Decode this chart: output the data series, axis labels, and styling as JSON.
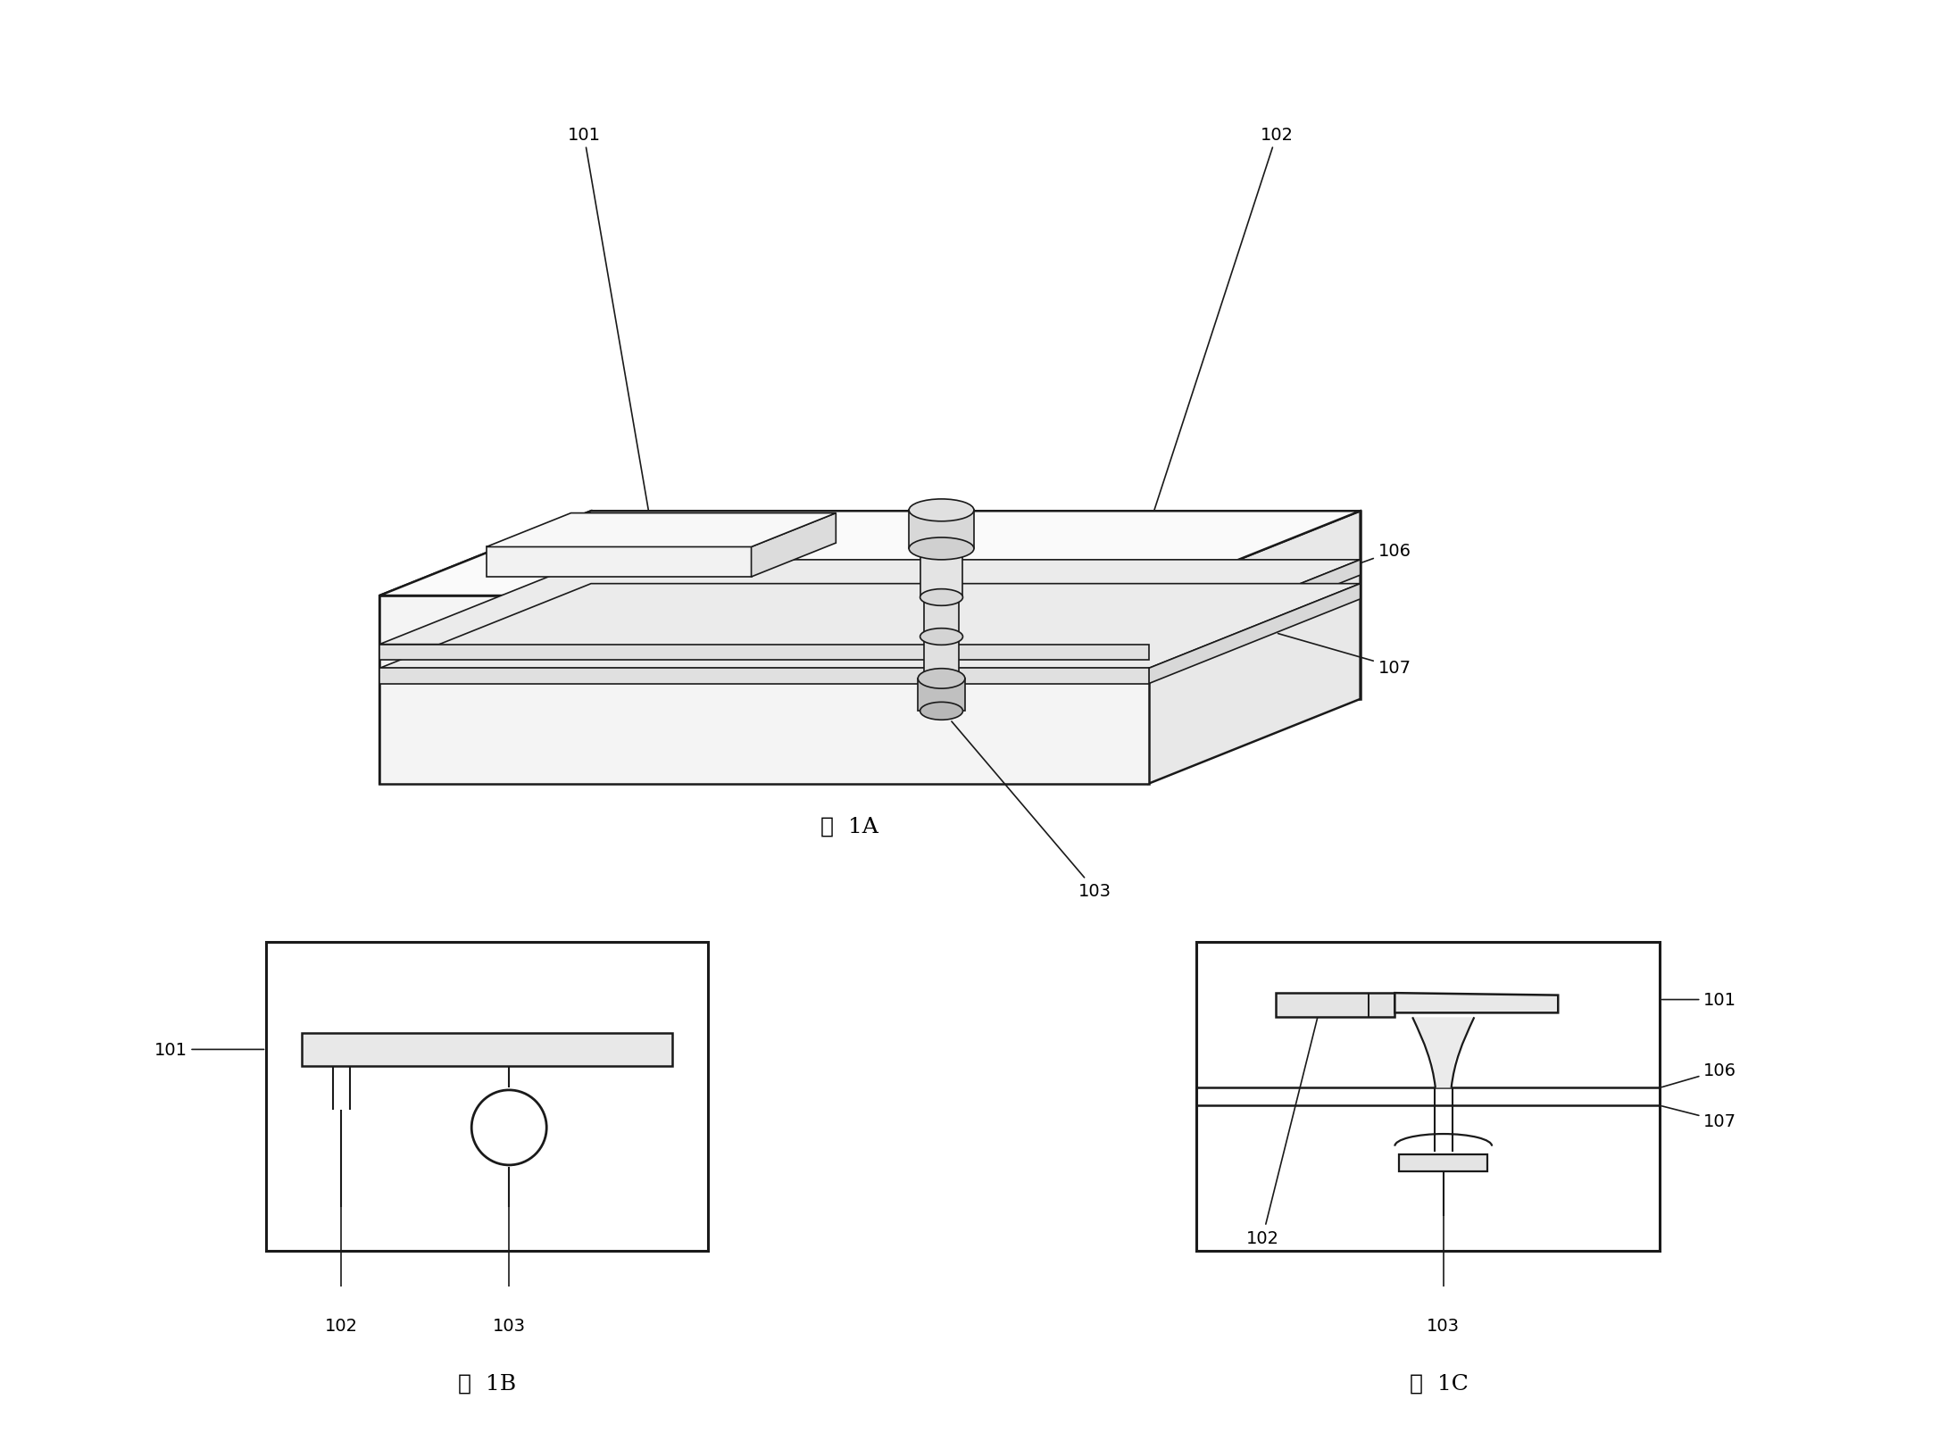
{
  "bg_color": "#ffffff",
  "line_color": "#1a1a1a",
  "fig_width": 21.82,
  "fig_height": 16.24,
  "labels": {
    "fig1A": "图  1A",
    "fig1B": "图  1B",
    "fig1C": "图  1C"
  },
  "font_size": 14,
  "caption_font_size": 18
}
